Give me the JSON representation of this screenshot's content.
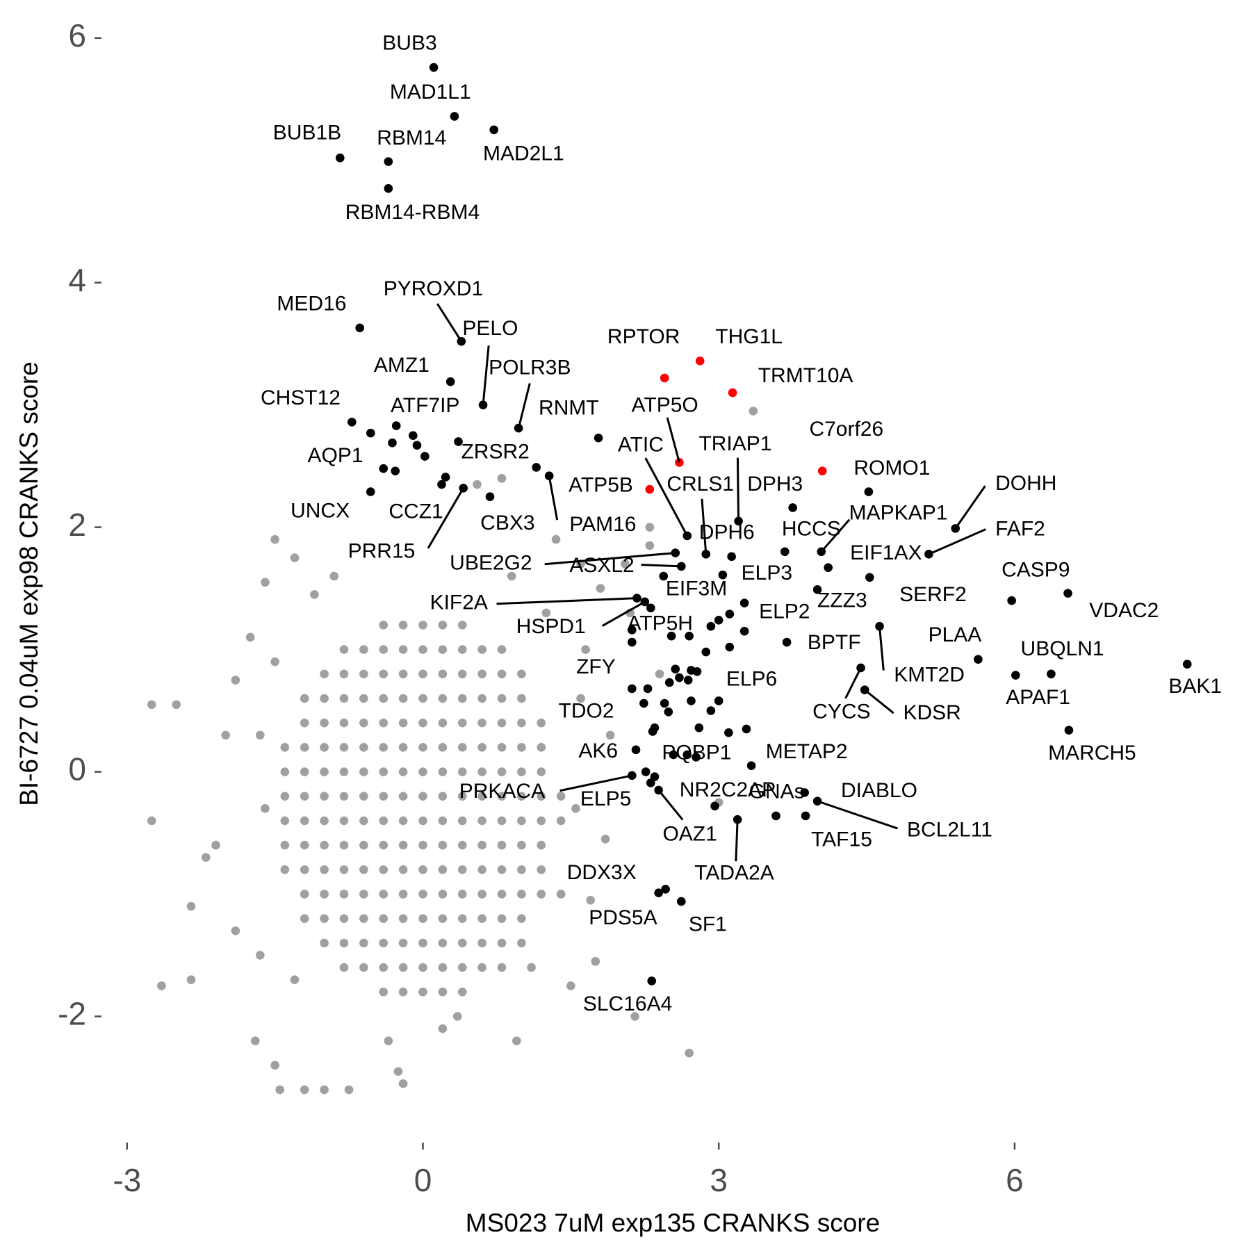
{
  "chart_data": {
    "type": "scatter",
    "xlabel": "MS023 7uM exp135 CRANKS score",
    "ylabel": "BI-6727 0.04uM exp98 CRANKS score",
    "xlim": [
      -3.15,
      8.15
    ],
    "ylim": [
      -2.85,
      6.05
    ],
    "xticks": [
      -3,
      0,
      3,
      6
    ],
    "yticks": [
      -2,
      0,
      2,
      4,
      6
    ],
    "grid": false,
    "series": [
      {
        "color": "#a0a0a0",
        "x": [
          -0.4,
          -0.2,
          0,
          0.2,
          0.4,
          -0.8,
          -0.6,
          -0.4,
          -0.2,
          0,
          0.2,
          0.4,
          0.6,
          0.8,
          -1,
          -0.8,
          -0.6,
          -0.4,
          -0.2,
          0,
          0.2,
          0.4,
          0.6,
          0.8,
          1,
          -1.2,
          -1,
          -0.8,
          -0.6,
          -0.4,
          -0.2,
          0,
          0.2,
          0.4,
          0.6,
          0.8,
          1,
          -1.2,
          -1,
          -0.8,
          -0.6,
          -0.4,
          -0.2,
          0,
          0.2,
          0.4,
          0.6,
          0.8,
          1,
          1.2,
          -1.4,
          -1.2,
          -1,
          -0.8,
          -0.6,
          -0.4,
          -0.2,
          0,
          0.2,
          0.4,
          0.6,
          0.8,
          1,
          1.2,
          -1.4,
          -1.2,
          -1,
          -0.8,
          -0.6,
          -0.4,
          -0.2,
          0,
          0.2,
          0.4,
          0.6,
          0.8,
          1,
          1.2,
          -1.4,
          -1.2,
          -1,
          -0.8,
          -0.6,
          -0.4,
          -0.2,
          0,
          0.2,
          0.4,
          0.6,
          0.8,
          1,
          1.2,
          1.4,
          -1.4,
          -1.2,
          -1,
          -0.8,
          -0.6,
          -0.4,
          -0.2,
          0,
          0.2,
          0.4,
          0.6,
          0.8,
          1,
          1.2,
          1.4,
          -1.4,
          -1.2,
          -1,
          -0.8,
          -0.6,
          -0.4,
          -0.2,
          0,
          0.2,
          0.4,
          0.6,
          0.8,
          1,
          1.2,
          -1.4,
          -1.2,
          -1,
          -0.8,
          -0.6,
          -0.4,
          -0.2,
          0,
          0.2,
          0.4,
          0.6,
          0.8,
          1,
          1.2,
          -1.2,
          -1,
          -0.8,
          -0.6,
          -0.4,
          -0.2,
          0,
          0.2,
          0.4,
          0.6,
          0.8,
          1,
          1.2,
          -1.2,
          -1,
          -0.8,
          -0.6,
          -0.4,
          -0.2,
          0,
          0.2,
          0.4,
          0.6,
          0.8,
          1,
          -1,
          -0.8,
          -0.6,
          -0.4,
          -0.2,
          0,
          0.2,
          0.4,
          0.6,
          0.8,
          1,
          -0.8,
          -0.6,
          -0.4,
          -0.2,
          0,
          0.2,
          0.4,
          0.6,
          0.8,
          -0.4,
          -0.2,
          0,
          0.2,
          0.4,
          -2.75,
          -2.5,
          -2.75,
          -2.65,
          -2.35,
          -2.35,
          -1.9,
          -1.5,
          -1.3,
          -1.6,
          -1.75,
          -2,
          -2.1,
          -2.2,
          -1.9,
          -1.65,
          -1.7,
          -1.5,
          -1.45,
          -1.2,
          -1,
          -0.75,
          -0.2,
          -0.25,
          -0.35,
          0.2,
          0.35,
          0.95,
          1.5,
          1.75,
          2.15,
          2.7,
          1.7,
          1.85,
          1.9,
          2.1,
          1.8,
          1.6,
          1.35,
          0.8,
          0.55,
          2.05,
          2.3,
          2.3,
          3.35,
          3,
          1.6,
          1.55,
          -1.6,
          -1.5,
          -1.1,
          -0.9,
          1.25,
          0.9,
          1.4,
          -1.3,
          1.1,
          1.65,
          -1.65,
          2.4
        ],
        "values": [
          1.2,
          1.2,
          1.2,
          1.2,
          1.2,
          1,
          1,
          1,
          1,
          1,
          1,
          1,
          1,
          1,
          0.8,
          0.8,
          0.8,
          0.8,
          0.8,
          0.8,
          0.8,
          0.8,
          0.8,
          0.8,
          0.8,
          0.6,
          0.6,
          0.6,
          0.6,
          0.6,
          0.6,
          0.6,
          0.6,
          0.6,
          0.6,
          0.6,
          0.6,
          0.4,
          0.4,
          0.4,
          0.4,
          0.4,
          0.4,
          0.4,
          0.4,
          0.4,
          0.4,
          0.4,
          0.4,
          0.4,
          0.2,
          0.2,
          0.2,
          0.2,
          0.2,
          0.2,
          0.2,
          0.2,
          0.2,
          0.2,
          0.2,
          0.2,
          0.2,
          0.2,
          0,
          0,
          0,
          0,
          0,
          0,
          0,
          0,
          0,
          0,
          0,
          0,
          0,
          0,
          -0.2,
          -0.2,
          -0.2,
          -0.2,
          -0.2,
          -0.2,
          -0.2,
          -0.2,
          -0.2,
          -0.2,
          -0.2,
          -0.2,
          -0.2,
          -0.2,
          -0.2,
          -0.4,
          -0.4,
          -0.4,
          -0.4,
          -0.4,
          -0.4,
          -0.4,
          -0.4,
          -0.4,
          -0.4,
          -0.4,
          -0.4,
          -0.4,
          -0.4,
          -0.4,
          -0.6,
          -0.6,
          -0.6,
          -0.6,
          -0.6,
          -0.6,
          -0.6,
          -0.6,
          -0.6,
          -0.6,
          -0.6,
          -0.6,
          -0.6,
          -0.6,
          -0.8,
          -0.8,
          -0.8,
          -0.8,
          -0.8,
          -0.8,
          -0.8,
          -0.8,
          -0.8,
          -0.8,
          -0.8,
          -0.8,
          -0.8,
          -0.8,
          -1,
          -1,
          -1,
          -1,
          -1,
          -1,
          -1,
          -1,
          -1,
          -1,
          -1,
          -1,
          -1,
          -1.2,
          -1.2,
          -1.2,
          -1.2,
          -1.2,
          -1.2,
          -1.2,
          -1.2,
          -1.2,
          -1.2,
          -1.2,
          -1.2,
          -1.4,
          -1.4,
          -1.4,
          -1.4,
          -1.4,
          -1.4,
          -1.4,
          -1.4,
          -1.4,
          -1.4,
          -1.4,
          -1.6,
          -1.6,
          -1.6,
          -1.6,
          -1.6,
          -1.6,
          -1.6,
          -1.6,
          -1.6,
          -1.8,
          -1.8,
          -1.8,
          -1.8,
          -1.8,
          0.55,
          0.55,
          -0.4,
          -1.75,
          -1.7,
          -1.1,
          0.75,
          1.9,
          1.75,
          1.55,
          1.1,
          0.3,
          -0.6,
          -0.7,
          -1.3,
          -1.5,
          -2.2,
          -2.4,
          -2.6,
          -2.6,
          -2.6,
          -2.6,
          -2.55,
          -2.45,
          -2.2,
          -2.1,
          -2,
          -2.2,
          -1.75,
          -1.55,
          -2,
          -2.3,
          -1.05,
          -0.55,
          0.3,
          1.3,
          1.5,
          1.7,
          1.9,
          2.4,
          2.35,
          1.7,
          2,
          1.85,
          2.95,
          -0.25,
          0.6,
          -0.3,
          -0.3,
          0.9,
          1.45,
          1.6,
          1.3,
          1.6,
          -1,
          -1.7,
          -1.6,
          1,
          0.3,
          0.8
        ]
      },
      {
        "color": "#000000",
        "x": [
          -0.53,
          -0.1,
          -0.31,
          -0.06,
          0.02,
          -0.28,
          0.23,
          1.15,
          2.31,
          2.7,
          2.52,
          2.92,
          3.11,
          3,
          3.26,
          3.11,
          2.56,
          2.72,
          2.78,
          2.6,
          2.69,
          2.5,
          2.28,
          2.45,
          2.72,
          2.92,
          3,
          2.24,
          2.49,
          2.35,
          2.8,
          3.1,
          3.28,
          2.33,
          2.68,
          2.77,
          2.26,
          2.31
        ],
        "values": [
          2.77,
          2.75,
          2.69,
          2.67,
          2.58,
          2.46,
          2.41,
          2.49,
          1.34,
          1.11,
          1.11,
          1.19,
          1.29,
          1.24,
          1.15,
          1.02,
          0.84,
          0.83,
          0.82,
          0.77,
          0.75,
          0.73,
          0.68,
          0.56,
          0.58,
          0.5,
          0.58,
          0.56,
          0.49,
          0.36,
          0.36,
          0.32,
          0.35,
          0.33,
          0.14,
          0.12,
          0,
          -0.09
        ]
      },
      {
        "color": "#000000",
        "labels": [
          "BUB3",
          "MAD1L1",
          "MAD2L1",
          "BUB1B",
          "RBM14",
          "RBM14-RBM4",
          "MED16",
          "PYROXD1",
          "PELO",
          "AMZ1",
          "POLR3B",
          "RNMT",
          "ATF7IP",
          "CHST12",
          "AQP1",
          "ZRSR2",
          "UNCX",
          "CCZ1",
          "PRR15",
          "CBX3",
          "PAM16",
          "ATIC",
          "TRIAP1",
          "CRLS1",
          "DPH3",
          "DPH6",
          "ROMO1",
          "DOHH",
          "MAPKAP1",
          "HCCS",
          "FAF2",
          "EIF1AX",
          "SERF2",
          "CASP9",
          "VDAC2",
          "UBE2G2",
          "ASXL2",
          "EIF3M",
          "KIF2A",
          "ELP3",
          "ZZZ3",
          "ELP2",
          "HSPD1",
          "ATP5H",
          "BPTF",
          "PLAA",
          "UBQLN1",
          "APAF1",
          "BAK1",
          "MARCH5",
          "KMT2D",
          "CYCS",
          "KDSR",
          "ZFY",
          "ELP6",
          "TDO2",
          "AK6",
          "PQBP1",
          "METAP2",
          "PRKACA",
          "ELP5",
          "OAZ1",
          "NR2C2AP",
          "GNAs",
          "DIABLO",
          "BCL2L11",
          "TAF15",
          "TADA2A",
          "DDX3X",
          "PDS5A",
          "SF1",
          "SLC16A4"
        ],
        "x": [
          0.11,
          0.32,
          0.72,
          -0.84,
          -0.35,
          -0.35,
          -0.64,
          0.39,
          0.61,
          0.28,
          0.97,
          1.78,
          -0.27,
          -0.72,
          -0.4,
          0.36,
          -0.53,
          0.19,
          0.41,
          0.68,
          1.28,
          2.68,
          3.2,
          2.87,
          3.75,
          3.13,
          4.52,
          5.4,
          4.04,
          3.67,
          5.13,
          4.11,
          4.53,
          5.97,
          6.54,
          2.56,
          2.62,
          2.44,
          2.17,
          3.04,
          4,
          3.26,
          2.25,
          2.12,
          3.69,
          5.63,
          6.37,
          6.01,
          7.75,
          6.55,
          4.63,
          4.44,
          4.48,
          2.12,
          2.87,
          2.12,
          2.16,
          2.54,
          3.33,
          2.12,
          2.35,
          2.39,
          2.96,
          3.58,
          3.87,
          4,
          3.88,
          3.19,
          2.39,
          2.46,
          2.62,
          2.32
        ],
        "values": [
          5.76,
          5.36,
          5.25,
          5.02,
          4.99,
          4.77,
          3.63,
          3.52,
          3,
          3.19,
          2.81,
          2.73,
          2.83,
          2.86,
          2.48,
          2.7,
          2.29,
          2.35,
          2.32,
          2.25,
          2.42,
          1.93,
          2.05,
          1.78,
          2.16,
          1.76,
          2.29,
          1.99,
          1.8,
          1.8,
          1.78,
          1.67,
          1.59,
          1.4,
          1.46,
          1.79,
          1.68,
          1.6,
          1.42,
          1.61,
          1.49,
          1.38,
          1.39,
          1.16,
          1.06,
          0.92,
          0.8,
          0.79,
          0.88,
          0.34,
          1.19,
          0.85,
          0.67,
          1.06,
          0.98,
          0.68,
          0.18,
          0.14,
          0.05,
          -0.03,
          -0.04,
          -0.15,
          -0.28,
          -0.36,
          -0.17,
          -0.24,
          -0.36,
          -0.39,
          -0.99,
          -0.96,
          -1.06,
          -1.71
        ]
      },
      {
        "color": "#ff0000",
        "labels": [
          "RPTOR",
          "THG1L",
          "TRMT10A",
          "ATP5O",
          "ATP5B",
          "C7orf26"
        ],
        "x": [
          2.45,
          2.81,
          3.14,
          2.6,
          2.3,
          4.05
        ],
        "values": [
          3.22,
          3.36,
          3.1,
          2.53,
          2.31,
          2.46
        ]
      }
    ]
  }
}
